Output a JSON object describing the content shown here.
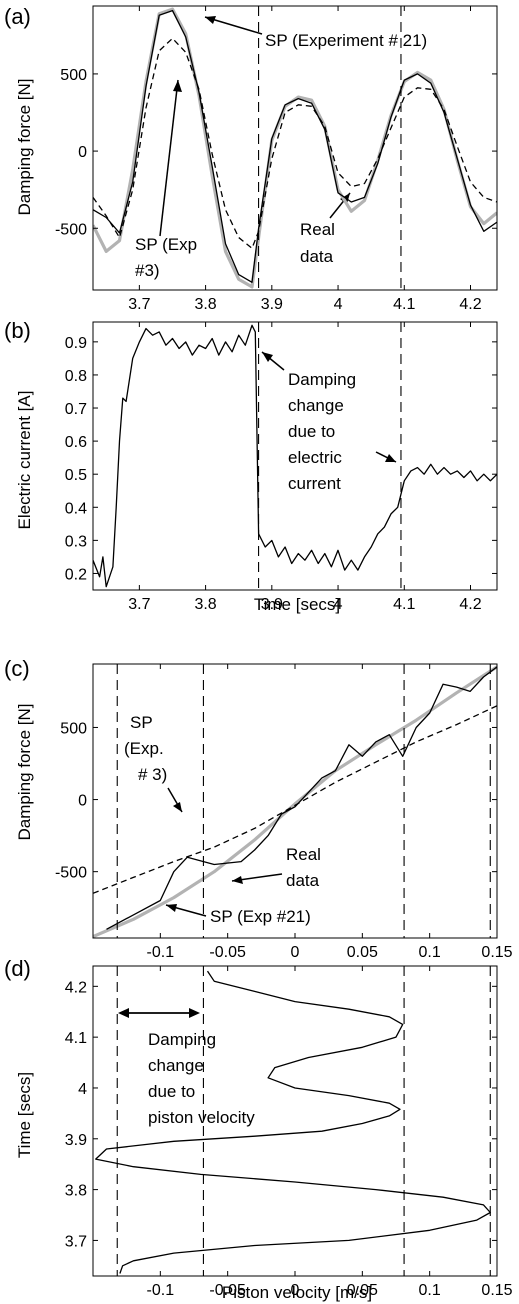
{
  "figure": {
    "background": "#ffffff"
  },
  "chart_data": [
    {
      "panel": "(a)",
      "type": "line",
      "xlabel": "",
      "ylabel": "Damping force [N]",
      "xlim": [
        3.63,
        4.24
      ],
      "ylim": [
        -900,
        940
      ],
      "xticks": [
        3.7,
        3.8,
        3.9,
        4,
        4.1,
        4.2
      ],
      "xtick_labels": [
        "3.7",
        "3.8",
        "3.9",
        "4",
        "4.1",
        "4.2"
      ],
      "yticks": [
        -500,
        0,
        500
      ],
      "ytick_labels": [
        "-500",
        "0",
        "500"
      ],
      "grid": false,
      "series": [
        {
          "name": "Real data",
          "style": "solid",
          "color": "#000000",
          "x": [
            3.63,
            3.65,
            3.67,
            3.69,
            3.71,
            3.73,
            3.75,
            3.77,
            3.79,
            3.81,
            3.83,
            3.85,
            3.87,
            3.88,
            3.9,
            3.92,
            3.94,
            3.96,
            3.98,
            4.0,
            4.02,
            4.04,
            4.06,
            4.08,
            4.1,
            4.12,
            4.14,
            4.16,
            4.18,
            4.2,
            4.22,
            4.24
          ],
          "y": [
            -380,
            -430,
            -530,
            -200,
            420,
            880,
            910,
            740,
            380,
            -100,
            -600,
            -800,
            -850,
            -500,
            80,
            300,
            340,
            310,
            140,
            -270,
            -330,
            -300,
            -80,
            220,
            460,
            500,
            440,
            250,
            -50,
            -350,
            -520,
            -460
          ]
        },
        {
          "name": "SP (Experiment # 21)",
          "style": "solid-gray",
          "color": "#b3b3b3",
          "x": [
            3.63,
            3.65,
            3.67,
            3.69,
            3.71,
            3.73,
            3.75,
            3.77,
            3.79,
            3.81,
            3.83,
            3.85,
            3.87,
            3.88,
            3.9,
            3.92,
            3.94,
            3.96,
            3.98,
            4.0,
            4.02,
            4.04,
            4.06,
            4.08,
            4.1,
            4.12,
            4.14,
            4.16,
            4.18,
            4.2,
            4.22,
            4.24
          ],
          "y": [
            -480,
            -650,
            -580,
            -120,
            450,
            890,
            920,
            760,
            360,
            -160,
            -650,
            -830,
            -880,
            -560,
            70,
            290,
            350,
            330,
            160,
            -250,
            -390,
            -320,
            -60,
            230,
            450,
            510,
            460,
            270,
            -60,
            -360,
            -470,
            -400
          ]
        },
        {
          "name": "SP (Exp #3)",
          "style": "dashed",
          "color": "#000000",
          "x": [
            3.63,
            3.65,
            3.67,
            3.69,
            3.71,
            3.73,
            3.75,
            3.77,
            3.79,
            3.81,
            3.83,
            3.85,
            3.87,
            3.88,
            3.9,
            3.92,
            3.94,
            3.96,
            3.98,
            4.0,
            4.02,
            4.04,
            4.06,
            4.08,
            4.1,
            4.12,
            4.14,
            4.16,
            4.18,
            4.2,
            4.22,
            4.24
          ],
          "y": [
            -300,
            -420,
            -560,
            -250,
            280,
            650,
            730,
            640,
            400,
            -20,
            -380,
            -560,
            -630,
            -520,
            -50,
            250,
            300,
            290,
            160,
            -140,
            -230,
            -210,
            -50,
            150,
            350,
            410,
            400,
            270,
            30,
            -200,
            -300,
            -330
          ]
        }
      ],
      "vlines": [
        3.88,
        4.095
      ],
      "annotations": [
        "SP (Experiment # 21)",
        "SP (Exp",
        "#3)",
        "Real",
        "data"
      ]
    },
    {
      "panel": "(b)",
      "type": "line",
      "xlabel": "Time [secs]",
      "ylabel": "Electric current [A]",
      "xlim": [
        3.63,
        4.24
      ],
      "ylim": [
        0.15,
        0.96
      ],
      "xticks": [
        3.7,
        3.8,
        3.9,
        4,
        4.1,
        4.2
      ],
      "xtick_labels": [
        "3.7",
        "3.8",
        "3.9",
        "4",
        "4.1",
        "4.2"
      ],
      "yticks": [
        0.2,
        0.3,
        0.4,
        0.5,
        0.6,
        0.7,
        0.8,
        0.9
      ],
      "ytick_labels": [
        "0.2",
        "0.3",
        "0.4",
        "0.5",
        "0.6",
        "0.7",
        "0.8",
        "0.9"
      ],
      "grid": false,
      "series": [
        {
          "style": "solid",
          "color": "#000000",
          "x": [
            3.63,
            3.64,
            3.645,
            3.65,
            3.66,
            3.665,
            3.67,
            3.675,
            3.68,
            3.69,
            3.7,
            3.71,
            3.72,
            3.73,
            3.74,
            3.75,
            3.76,
            3.77,
            3.78,
            3.79,
            3.8,
            3.81,
            3.82,
            3.83,
            3.84,
            3.85,
            3.86,
            3.87,
            3.875,
            3.88,
            3.89,
            3.9,
            3.91,
            3.92,
            3.93,
            3.94,
            3.95,
            3.96,
            3.97,
            3.98,
            3.99,
            4.0,
            4.01,
            4.02,
            4.03,
            4.04,
            4.05,
            4.06,
            4.07,
            4.08,
            4.09,
            4.1,
            4.11,
            4.12,
            4.13,
            4.14,
            4.15,
            4.16,
            4.17,
            4.18,
            4.19,
            4.2,
            4.21,
            4.22,
            4.23,
            4.24
          ],
          "y": [
            0.24,
            0.19,
            0.25,
            0.16,
            0.22,
            0.4,
            0.6,
            0.73,
            0.72,
            0.85,
            0.9,
            0.94,
            0.92,
            0.93,
            0.89,
            0.91,
            0.88,
            0.9,
            0.86,
            0.89,
            0.88,
            0.91,
            0.86,
            0.9,
            0.87,
            0.92,
            0.89,
            0.95,
            0.93,
            0.32,
            0.28,
            0.3,
            0.25,
            0.28,
            0.23,
            0.26,
            0.24,
            0.27,
            0.23,
            0.26,
            0.22,
            0.27,
            0.21,
            0.24,
            0.21,
            0.25,
            0.28,
            0.32,
            0.34,
            0.38,
            0.4,
            0.48,
            0.51,
            0.52,
            0.5,
            0.53,
            0.5,
            0.52,
            0.5,
            0.51,
            0.49,
            0.51,
            0.48,
            0.5,
            0.48,
            0.5
          ]
        }
      ],
      "vlines": [
        3.88,
        4.095
      ],
      "annotations": [
        "Damping",
        "change",
        "due to",
        "electric",
        "current"
      ]
    },
    {
      "panel": "(c)",
      "type": "line",
      "xlabel": "",
      "ylabel": "Damping force [N]",
      "xlim": [
        -0.15,
        0.15
      ],
      "ylim": [
        -960,
        940
      ],
      "xticks": [
        -0.1,
        -0.05,
        0,
        0.05,
        0.1,
        0.15
      ],
      "xtick_labels": [
        "-0.1",
        "-0.05",
        "0",
        "0.05",
        "0.1",
        "0.15"
      ],
      "yticks": [
        -500,
        0,
        500
      ],
      "ytick_labels": [
        "-500",
        "0",
        "500"
      ],
      "grid": false,
      "series": [
        {
          "name": "Real data",
          "style": "solid",
          "color": "#000000",
          "x": [
            -0.14,
            -0.12,
            -0.1,
            -0.09,
            -0.08,
            -0.06,
            -0.04,
            -0.03,
            -0.02,
            -0.01,
            0,
            0.01,
            0.02,
            0.03,
            0.04,
            0.05,
            0.06,
            0.07,
            0.08,
            0.09,
            0.1,
            0.11,
            0.12,
            0.13,
            0.14,
            0.15
          ],
          "y": [
            -900,
            -800,
            -700,
            -500,
            -400,
            -450,
            -430,
            -350,
            -250,
            -100,
            -50,
            50,
            150,
            200,
            380,
            300,
            400,
            450,
            300,
            500,
            600,
            800,
            780,
            750,
            850,
            920
          ]
        },
        {
          "name": "SP (Exp #21)",
          "style": "solid-gray",
          "color": "#b3b3b3",
          "x": [
            -0.15,
            -0.12,
            -0.09,
            -0.06,
            -0.03,
            0,
            0.03,
            0.06,
            0.09,
            0.12,
            0.15
          ],
          "y": [
            -950,
            -830,
            -680,
            -500,
            -280,
            -30,
            200,
            380,
            550,
            740,
            920
          ]
        },
        {
          "name": "SP (Exp. # 3)",
          "style": "dashed",
          "color": "#000000",
          "x": [
            -0.15,
            -0.12,
            -0.09,
            -0.06,
            -0.03,
            0,
            0.03,
            0.06,
            0.09,
            0.12,
            0.15
          ],
          "y": [
            -650,
            -540,
            -430,
            -330,
            -200,
            -40,
            120,
            260,
            400,
            520,
            650
          ]
        }
      ],
      "vlines": [
        -0.132,
        -0.068,
        0.081,
        0.145
      ],
      "annotations": [
        "SP",
        "(Exp.",
        "# 3)",
        "Real",
        "data",
        "SP (Exp  #21)"
      ]
    },
    {
      "panel": "(d)",
      "type": "line",
      "xlabel": "Piston velocity [m/s]",
      "ylabel": "Time [secs]",
      "xlim": [
        -0.15,
        0.15
      ],
      "ylim": [
        3.63,
        4.24
      ],
      "xticks": [
        -0.1,
        -0.05,
        0,
        0.05,
        0.1,
        0.15
      ],
      "xtick_labels": [
        "-0.1",
        "-0.05",
        "0",
        "0.05",
        "0.1",
        "0.15"
      ],
      "yticks": [
        3.7,
        3.8,
        3.9,
        4,
        4.1,
        4.2
      ],
      "ytick_labels": [
        "3.7",
        "3.8",
        "3.9",
        "4",
        "4.1",
        "4.2"
      ],
      "grid": false,
      "series": [
        {
          "style": "solid",
          "color": "#000000",
          "x": [
            -0.13,
            -0.128,
            -0.12,
            -0.09,
            -0.03,
            0.04,
            0.1,
            0.135,
            0.145,
            0.14,
            0.11,
            0.06,
            0.0,
            -0.07,
            -0.12,
            -0.148,
            -0.14,
            -0.09,
            -0.03,
            0.02,
            0.05,
            0.07,
            0.078,
            0.07,
            0.04,
            0.0,
            -0.02,
            -0.015,
            0.01,
            0.05,
            0.075,
            0.08,
            0.07,
            0.04,
            0.0,
            -0.03,
            -0.06,
            -0.065
          ],
          "y": [
            3.635,
            3.65,
            3.66,
            3.675,
            3.69,
            3.7,
            3.72,
            3.74,
            3.755,
            3.77,
            3.785,
            3.8,
            3.815,
            3.83,
            3.845,
            3.86,
            3.88,
            3.895,
            3.905,
            3.915,
            3.93,
            3.945,
            3.958,
            3.97,
            3.985,
            4.0,
            4.02,
            4.04,
            4.06,
            4.08,
            4.1,
            4.125,
            4.14,
            4.155,
            4.17,
            4.19,
            4.21,
            4.23
          ]
        }
      ],
      "vlines": [
        -0.132,
        -0.068,
        0.081,
        0.145
      ],
      "annotations": [
        "Damping",
        "change",
        "due to",
        "piston velocity"
      ]
    }
  ]
}
